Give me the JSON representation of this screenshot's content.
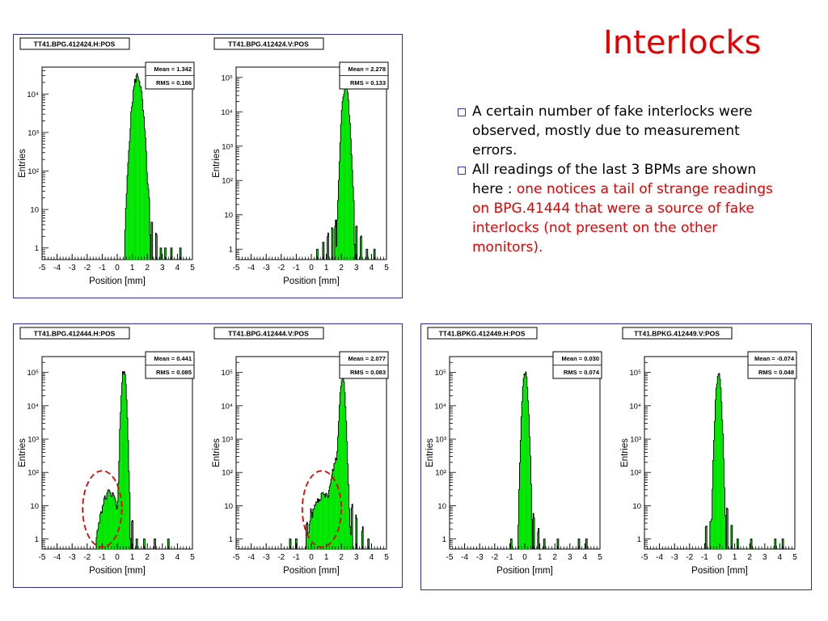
{
  "slide": {
    "title": "Interlocks",
    "bullets": [
      {
        "plain": "A certain number of fake interlocks were observed, mostly due to measurement errors.",
        "red": ""
      },
      {
        "plain": "All readings of the last 3 BPMs are shown here : ",
        "red": "one notices a tail of strange readings on BPG.41444 that were a source of fake interlocks (not present on the other monitors)."
      }
    ]
  },
  "chart_data": [
    {
      "type": "histogram",
      "title": "TT41.BPG.412424.H:POS",
      "mean": "Mean = 1.342",
      "rms": "RMS = 0.186",
      "xlabel": "Position [mm]",
      "ylabel": "Entries",
      "xlim": [
        -5,
        5
      ],
      "ylog": true,
      "ylim": [
        0.5,
        50000
      ],
      "xticks": [
        "-5",
        "-4",
        "-3",
        "-2",
        "-1",
        "0",
        "1",
        "2",
        "3",
        "4",
        "5"
      ],
      "yticks": [
        {
          "v": 1,
          "label": "1"
        },
        {
          "v": 10,
          "label": "10"
        },
        {
          "v": 100,
          "label": "10²"
        },
        {
          "v": 1000,
          "label": "10³"
        },
        {
          "v": 10000,
          "label": "10⁴"
        }
      ],
      "peaks": [
        {
          "mu": 1.34,
          "sigma": 0.19,
          "amp": 30000
        }
      ],
      "tail": [
        [
          1.9,
          30
        ],
        [
          2.1,
          12
        ],
        [
          2.3,
          4
        ],
        [
          2.6,
          2
        ],
        [
          2.9,
          1
        ],
        [
          3.2,
          1
        ],
        [
          3.6,
          1
        ],
        [
          4.2,
          1
        ]
      ]
    },
    {
      "type": "histogram",
      "title": "TT41.BPG.412424.V:POS",
      "mean": "Mean = 2.278",
      "rms": "RMS = 0.133",
      "xlabel": "Position [mm]",
      "ylabel": "Entries",
      "xlim": [
        -5,
        5
      ],
      "ylog": true,
      "ylim": [
        0.5,
        200000
      ],
      "xticks": [
        "-5",
        "-4",
        "-3",
        "-2",
        "-1",
        "0",
        "1",
        "2",
        "3",
        "4",
        "5"
      ],
      "yticks": [
        {
          "v": 1,
          "label": "1"
        },
        {
          "v": 10,
          "label": "10"
        },
        {
          "v": 100,
          "label": "10²"
        },
        {
          "v": 1000,
          "label": "10³"
        },
        {
          "v": 10000,
          "label": "10⁴"
        },
        {
          "v": 100000,
          "label": "10⁵"
        }
      ],
      "peaks": [
        {
          "mu": 2.28,
          "sigma": 0.13,
          "amp": 60000
        }
      ],
      "tail": [
        [
          0.4,
          1
        ],
        [
          0.8,
          2
        ],
        [
          1.1,
          3
        ],
        [
          1.4,
          4
        ],
        [
          1.6,
          6
        ],
        [
          2.8,
          20
        ],
        [
          3.0,
          6
        ],
        [
          3.3,
          2
        ],
        [
          3.7,
          1
        ],
        [
          4.2,
          1
        ]
      ]
    },
    {
      "type": "histogram",
      "title": "TT41.BPG.412444.H:POS",
      "mean": "Mean = 0.441",
      "rms": "RMS = 0.085",
      "xlabel": "Position [mm]",
      "ylabel": "Entries",
      "xlim": [
        -5,
        5
      ],
      "ylog": true,
      "ylim": [
        0.5,
        300000
      ],
      "xticks": [
        "-5",
        "-4",
        "-3",
        "-2",
        "-1",
        "0",
        "1",
        "2",
        "3",
        "4",
        "5"
      ],
      "yticks": [
        {
          "v": 1,
          "label": "1"
        },
        {
          "v": 10,
          "label": "10"
        },
        {
          "v": 100,
          "label": "10²"
        },
        {
          "v": 1000,
          "label": "10³"
        },
        {
          "v": 10000,
          "label": "10⁴"
        },
        {
          "v": 100000,
          "label": "10⁵"
        }
      ],
      "peaks": [
        {
          "mu": 0.44,
          "sigma": 0.09,
          "amp": 120000
        },
        {
          "mu": -0.5,
          "sigma": 0.35,
          "amp": 25
        }
      ],
      "tail": [
        [
          0.8,
          8
        ],
        [
          1.0,
          3
        ],
        [
          1.3,
          1
        ],
        [
          1.8,
          1
        ],
        [
          2.5,
          1
        ],
        [
          3.4,
          1
        ]
      ],
      "highlight": {
        "cx": -1.0,
        "cy": 8,
        "rx": 1.3
      }
    },
    {
      "type": "histogram",
      "title": "TT41.BPG.412444.V:POS",
      "mean": "Mean = 2.077",
      "rms": "RMS = 0.083",
      "xlabel": "Position [mm]",
      "ylabel": "Entries",
      "xlim": [
        -5,
        5
      ],
      "ylog": true,
      "ylim": [
        0.5,
        300000
      ],
      "xticks": [
        "-5",
        "-4",
        "-3",
        "-2",
        "-1",
        "0",
        "1",
        "2",
        "3",
        "4",
        "5"
      ],
      "yticks": [
        {
          "v": 1,
          "label": "1"
        },
        {
          "v": 10,
          "label": "10"
        },
        {
          "v": 100,
          "label": "10²"
        },
        {
          "v": 1000,
          "label": "10³"
        },
        {
          "v": 10000,
          "label": "10⁴"
        },
        {
          "v": 100000,
          "label": "10⁵"
        }
      ],
      "peaks": [
        {
          "mu": 2.08,
          "sigma": 0.1,
          "amp": 80000
        },
        {
          "mu": 0.8,
          "sigma": 0.45,
          "amp": 20
        },
        {
          "mu": 1.8,
          "sigma": 0.25,
          "amp": 300
        }
      ],
      "tail": [
        [
          0.0,
          4
        ],
        [
          -0.3,
          2
        ],
        [
          -1.0,
          1
        ],
        [
          -1.4,
          1
        ],
        [
          2.7,
          10
        ],
        [
          3.0,
          5
        ],
        [
          3.4,
          2
        ],
        [
          3.8,
          1
        ]
      ],
      "highlight": {
        "cx": 0.7,
        "cy": 8,
        "rx": 1.3
      }
    },
    {
      "type": "histogram",
      "title": "TT41.BPKG.412449.H:POS",
      "mean": "Mean = 0.030",
      "rms": "RMS = 0.074",
      "xlabel": "Position [mm]",
      "ylabel": "Entries",
      "xlim": [
        -5,
        5
      ],
      "ylog": true,
      "ylim": [
        0.5,
        300000
      ],
      "xticks": [
        "-5",
        "-4",
        "-3",
        "-2",
        "-1",
        "0",
        "1",
        "2",
        "3",
        "4",
        "5"
      ],
      "yticks": [
        {
          "v": 1,
          "label": "1"
        },
        {
          "v": 10,
          "label": "10"
        },
        {
          "v": 100,
          "label": "10²"
        },
        {
          "v": 1000,
          "label": "10³"
        },
        {
          "v": 10000,
          "label": "10⁴"
        },
        {
          "v": 100000,
          "label": "10⁵"
        }
      ],
      "peaks": [
        {
          "mu": 0.03,
          "sigma": 0.1,
          "amp": 100000
        }
      ],
      "tail": [
        [
          -0.9,
          1
        ],
        [
          0.6,
          5
        ],
        [
          0.9,
          2
        ],
        [
          1.3,
          1
        ],
        [
          2.2,
          1
        ],
        [
          3.6,
          1
        ],
        [
          4.1,
          1
        ]
      ]
    },
    {
      "type": "histogram",
      "title": "TT41.BPKG.412449.V:POS",
      "mean": "Mean = -0.074",
      "rms": "RMS = 0.048",
      "xlabel": "Position [mm]",
      "ylabel": "Entries",
      "xlim": [
        -5,
        5
      ],
      "ylog": true,
      "ylim": [
        0.5,
        300000
      ],
      "xticks": [
        "-5",
        "-4",
        "-3",
        "-2",
        "-1",
        "0",
        "1",
        "2",
        "3",
        "4",
        "5"
      ],
      "yticks": [
        {
          "v": 1,
          "label": "1"
        },
        {
          "v": 10,
          "label": "10"
        },
        {
          "v": 100,
          "label": "10²"
        },
        {
          "v": 1000,
          "label": "10³"
        },
        {
          "v": 10000,
          "label": "10⁴"
        },
        {
          "v": 100000,
          "label": "10⁵"
        }
      ],
      "peaks": [
        {
          "mu": -0.07,
          "sigma": 0.1,
          "amp": 100000
        }
      ],
      "tail": [
        [
          -0.9,
          2
        ],
        [
          -0.6,
          4
        ],
        [
          0.5,
          8
        ],
        [
          0.8,
          3
        ],
        [
          1.2,
          1
        ],
        [
          2.1,
          1
        ],
        [
          3.7,
          1
        ],
        [
          4.2,
          1
        ]
      ]
    }
  ],
  "colors": {
    "fill": "#00e600",
    "title": "#e60000",
    "frame": "#2b2b9a",
    "highlight": "#e60000",
    "bullet": "#3b2fb8"
  }
}
